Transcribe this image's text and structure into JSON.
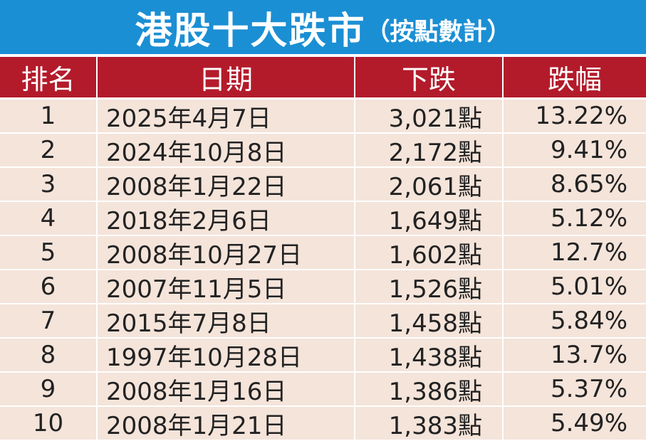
{
  "header": {
    "title": "港股十大跌市",
    "subtitle": "（按點數計）"
  },
  "table": {
    "columns": [
      "排名",
      "日期",
      "下跌",
      "跌幅"
    ],
    "rows": [
      [
        "1",
        "2025年4月7日",
        "3,021點",
        "13.22%"
      ],
      [
        "2",
        "2024年10月8日",
        "2,172點",
        "9.41%"
      ],
      [
        "3",
        "2008年1月22日",
        "2,061點",
        "8.65%"
      ],
      [
        "4",
        "2018年2月6日",
        "1,649點",
        "5.12%"
      ],
      [
        "5",
        "2008年10月27日",
        "1,602點",
        "12.7%"
      ],
      [
        "6",
        "2007年11月5日",
        "1,526點",
        "5.01%"
      ],
      [
        "7",
        "2015年7月8日",
        "1,458點",
        "5.84%"
      ],
      [
        "8",
        "1997年10月28日",
        "1,438點",
        "13.7%"
      ],
      [
        "9",
        "2008年1月16日",
        "1,386點",
        "5.37%"
      ],
      [
        "10",
        "2008年1月21日",
        "1,383點",
        "5.49%"
      ]
    ]
  }
}
